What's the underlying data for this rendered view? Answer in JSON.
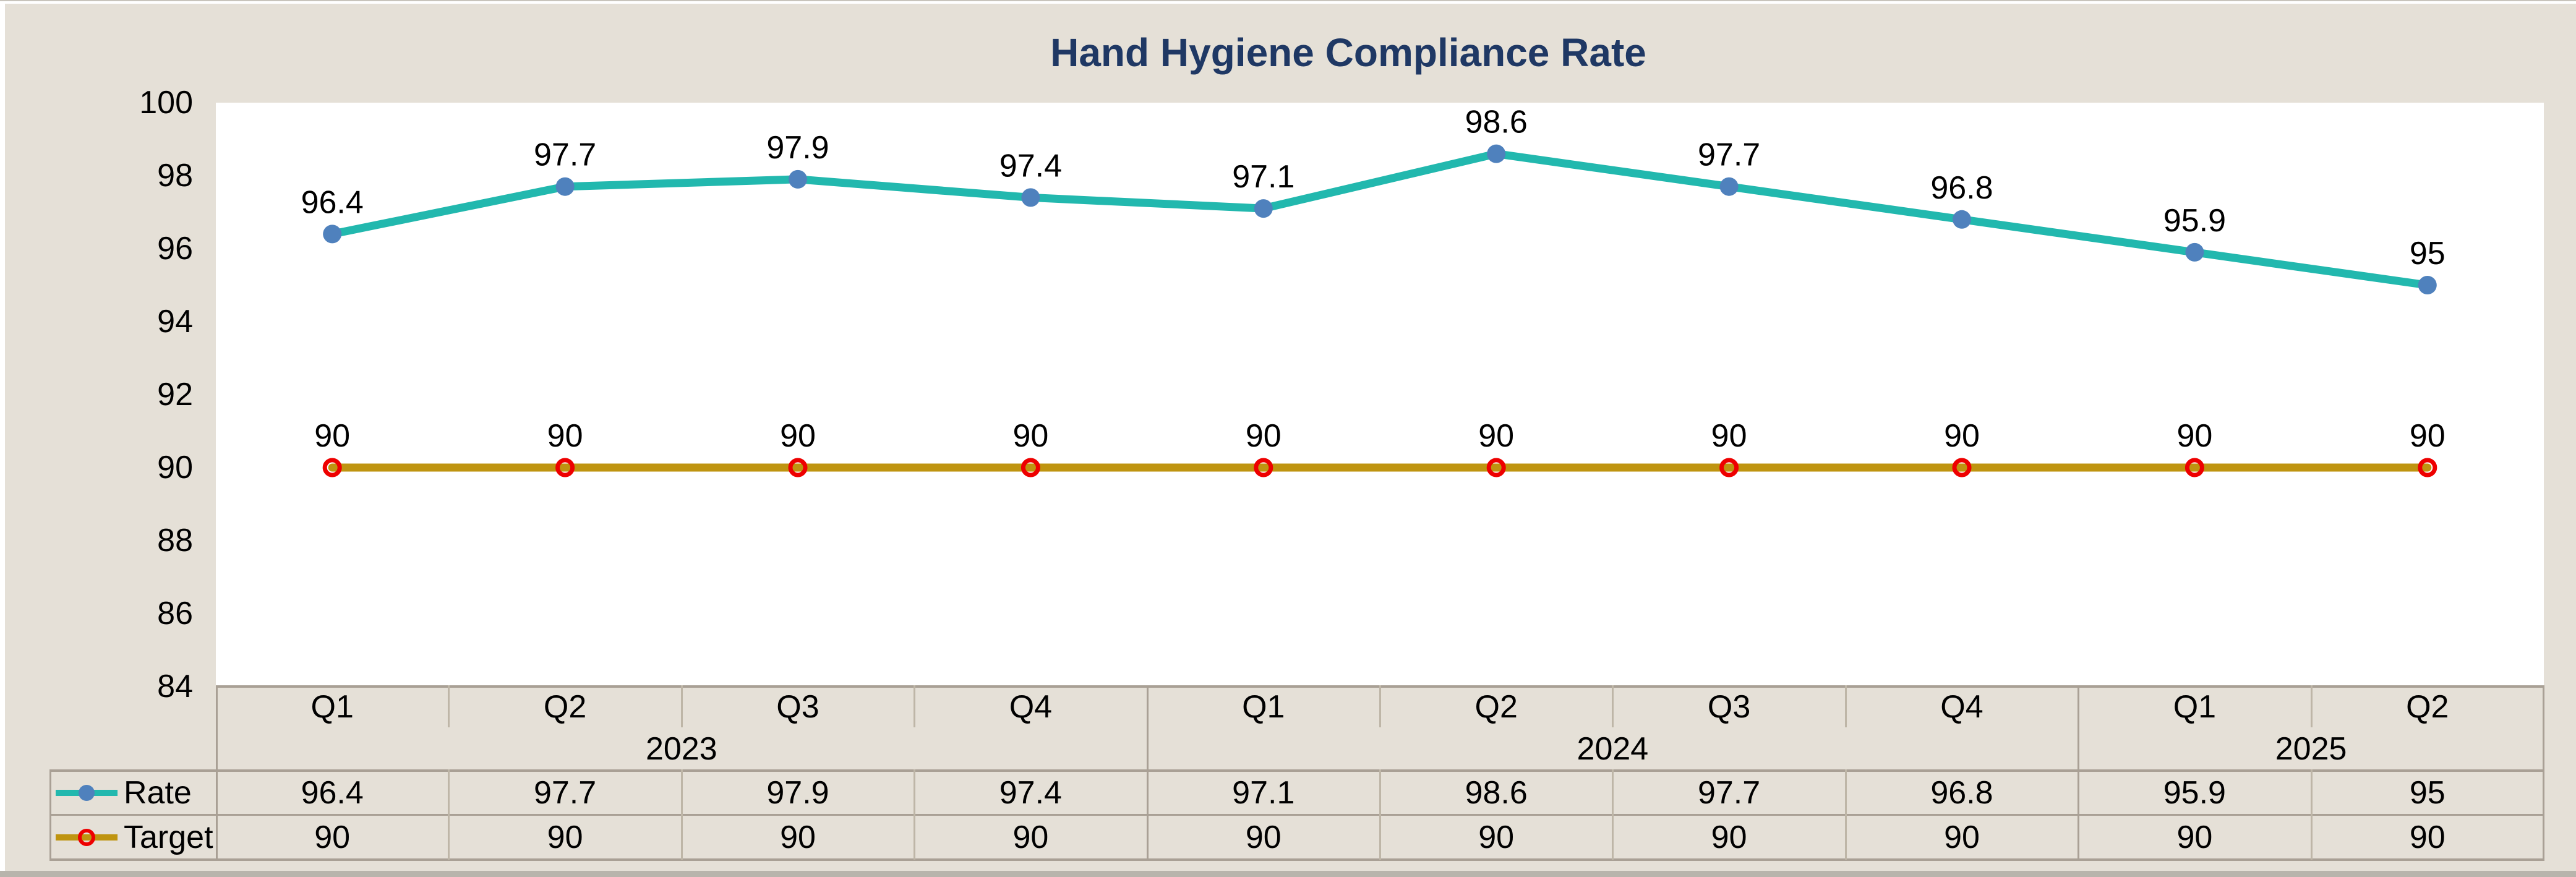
{
  "title": {
    "text": "Hand Hygiene Compliance Rate"
  },
  "chart_data": {
    "type": "line",
    "categories": [
      "Q1",
      "Q2",
      "Q3",
      "Q4",
      "Q1",
      "Q2",
      "Q3",
      "Q4",
      "Q1",
      "Q2"
    ],
    "year_groups": [
      {
        "label": "2023",
        "span": 4
      },
      {
        "label": "2024",
        "span": 4
      },
      {
        "label": "2025",
        "span": 2
      }
    ],
    "series": [
      {
        "name": "Rate",
        "values": [
          96.4,
          97.7,
          97.9,
          97.4,
          97.1,
          98.6,
          97.7,
          96.8,
          95.9,
          95
        ],
        "line_color": "#22b8ae",
        "marker": "filled-circle",
        "marker_color": "#4f81bd"
      },
      {
        "name": "Target",
        "values": [
          90,
          90,
          90,
          90,
          90,
          90,
          90,
          90,
          90,
          90
        ],
        "line_color": "#bf9410",
        "marker": "open-circle",
        "marker_color": "#ee0000"
      }
    ],
    "ylim": [
      84,
      100
    ],
    "ytick_step": 2,
    "yticks": [
      "100",
      "98",
      "96",
      "94",
      "92",
      "90",
      "88",
      "86",
      "84"
    ],
    "grid": false,
    "data_labels": "above-points",
    "legend_position": "data-table-left"
  },
  "colors": {
    "title_text": "#1f3864",
    "canvas_background": "#e5e0d7",
    "plot_background": "#ffffff",
    "label_text": "#000000",
    "table_line_strong": "#a9a095",
    "table_line_light": "#beb6a7"
  }
}
